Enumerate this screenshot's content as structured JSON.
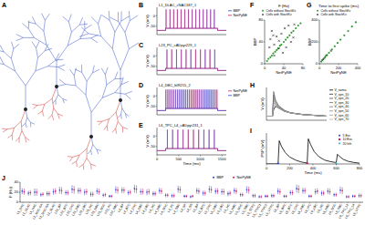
{
  "chart_data": [
    {
      "type": "morphology",
      "panel": "A"
    },
    {
      "type": "trace",
      "panel": "B",
      "title": "L1_DLAC_cNAC187_1",
      "y_label": "V (mV)",
      "xlim": [
        0,
        1600
      ],
      "ylim": [
        -90,
        40
      ],
      "yticks": [
        -50,
        0
      ],
      "stim": [
        200,
        1400
      ],
      "v_rest": -70,
      "v_stim": -60,
      "v_peak": 30,
      "legend": "upper right",
      "series": [
        {
          "name": "BBP",
          "color": "#2b3fd6",
          "spike_times": [
            210,
            300,
            385,
            470,
            555,
            640,
            725,
            810,
            895,
            980,
            1065,
            1150,
            1235,
            1320
          ]
        },
        {
          "name": "NetPyNE",
          "color": "#d1185a",
          "spike_times": [
            212,
            302,
            388,
            473,
            558,
            644,
            729,
            814,
            899,
            985,
            1070,
            1155,
            1240,
            1326
          ]
        }
      ]
    },
    {
      "type": "trace",
      "panel": "C",
      "title": "L23_PC_cADpyr229_1",
      "y_label": "V (mV)",
      "xlim": [
        0,
        1600
      ],
      "ylim": [
        -90,
        40
      ],
      "yticks": [
        -50,
        0
      ],
      "stim": [
        200,
        1400
      ],
      "v_rest": -70,
      "v_stim": -60,
      "v_peak": 30,
      "series": [
        {
          "name": "BBP",
          "color": "#2b3fd6",
          "spike_times": [
            230,
            340,
            450,
            560,
            670,
            780,
            890,
            1000,
            1110,
            1220,
            1330
          ]
        },
        {
          "name": "NetPyNE",
          "color": "#d1185a",
          "spike_times": [
            232,
            343,
            453,
            564,
            674,
            785,
            895,
            1006,
            1116,
            1227,
            1337
          ]
        }
      ]
    },
    {
      "type": "trace",
      "panel": "D",
      "title": "L4_DBC_bIR215_2",
      "y_label": "V (mV)",
      "xlim": [
        0,
        1600
      ],
      "ylim": [
        -90,
        40
      ],
      "yticks": [
        -50,
        0
      ],
      "stim": [
        200,
        1400
      ],
      "v_rest": -70,
      "v_stim": -60,
      "v_peak": 30,
      "legend": "upper right",
      "series": [
        {
          "name": "NetPyNE",
          "color": "#d1185a",
          "spike_times": [
            207,
            253,
            298,
            344,
            389,
            435,
            480,
            526,
            571,
            617,
            662,
            708,
            753,
            799,
            844,
            890,
            935,
            981,
            1026,
            1072,
            1117,
            1163,
            1208,
            1254,
            1299,
            1345,
            1390
          ]
        },
        {
          "name": "BBP",
          "color": "#2b3fd6",
          "spike_times": [
            205,
            250,
            295,
            340,
            385,
            430,
            475,
            520,
            565,
            610,
            655,
            700,
            745,
            790,
            835,
            880,
            925,
            970,
            1015,
            1060,
            1105,
            1150,
            1195,
            1240,
            1285,
            1330,
            1375
          ]
        }
      ]
    },
    {
      "type": "trace",
      "panel": "E",
      "title": "L6_TPC_L4_cADpyr231_1",
      "y_label": "V (mV)",
      "x_label": "Time (ms)",
      "xlim": [
        0,
        1600
      ],
      "xticks": [
        0,
        500,
        1000,
        1500
      ],
      "ylim": [
        -90,
        40
      ],
      "yticks": [
        -50,
        0
      ],
      "stim": [
        200,
        1400
      ],
      "v_rest": -70,
      "v_stim": -60,
      "v_peak": 30,
      "series": [
        {
          "name": "BBP",
          "color": "#2b3fd6",
          "spike_times": [
            240,
            360,
            480,
            600,
            720,
            840,
            960,
            1080,
            1200,
            1320
          ]
        },
        {
          "name": "NetPyNE",
          "color": "#d1185a",
          "spike_times": [
            242,
            363,
            483,
            604,
            724,
            845,
            965,
            1086,
            1206,
            1327
          ]
        }
      ]
    },
    {
      "type": "scatter",
      "panel": "F",
      "title": "F (Hz)",
      "x_label": "NetPyNE",
      "y_label": "BBP",
      "xlim": [
        0,
        80
      ],
      "ylim": [
        0,
        80
      ],
      "xticks": [
        0,
        40,
        80
      ],
      "yticks": [
        0,
        40,
        80
      ],
      "legend": "upper left",
      "series": [
        {
          "name": "Cells without StochKv",
          "color": "#2e9e2e",
          "marker": "circle",
          "x": [
            5,
            8,
            12,
            15,
            18,
            22,
            25,
            28,
            32,
            35,
            40,
            44,
            48,
            52,
            56,
            60,
            65,
            70,
            75
          ],
          "values": [
            5,
            9,
            12,
            15,
            19,
            22,
            25,
            28,
            33,
            35,
            40,
            44,
            48,
            52,
            57,
            60,
            65,
            70,
            74
          ]
        },
        {
          "name": "Cells with StochKv",
          "color": "#000000",
          "marker": "cross",
          "x": [
            10,
            12,
            15,
            20,
            25,
            30,
            35,
            38,
            42,
            45,
            50,
            55,
            60,
            20,
            30,
            62,
            18
          ],
          "values": [
            30,
            45,
            60,
            35,
            50,
            42,
            55,
            20,
            65,
            30,
            70,
            40,
            48,
            15,
            28,
            72,
            52
          ]
        }
      ]
    },
    {
      "type": "scatter",
      "panel": "G",
      "title": "Time to first spike (ms)",
      "x_label": "NetPyNE",
      "y_label": "BBP",
      "xlim": [
        0,
        400
      ],
      "ylim": [
        0,
        400
      ],
      "xticks": [
        0,
        200,
        400
      ],
      "yticks": [
        0,
        200,
        400
      ],
      "legend": "upper left",
      "series": [
        {
          "name": "Cells without StochKv",
          "color": "#2e9e2e",
          "marker": "circle",
          "x": [
            20,
            40,
            60,
            80,
            100,
            130,
            160,
            190,
            220,
            260,
            300,
            340,
            380
          ],
          "values": [
            20,
            40,
            61,
            80,
            100,
            130,
            160,
            190,
            220,
            260,
            300,
            340,
            380
          ]
        },
        {
          "name": "Cells with StochKv",
          "color": "#000000",
          "marker": "cross",
          "x": [
            30,
            50,
            70,
            120
          ],
          "values": [
            32,
            50,
            75,
            118
          ]
        }
      ]
    },
    {
      "type": "line",
      "panel": "H",
      "y_label": "V (mV)",
      "xlim": [
        0,
        100
      ],
      "ylim": [
        -75,
        -35
      ],
      "tick_labels": false,
      "legend": "upper right",
      "x": [
        0,
        5,
        10,
        12,
        15,
        20,
        30,
        40,
        60,
        80,
        100
      ],
      "series": [
        {
          "name": "V_soma",
          "color": "#000000",
          "values": [
            -70,
            -70,
            -70,
            -62,
            -58,
            -60,
            -64,
            -66,
            -68,
            -69,
            -70
          ]
        },
        {
          "name": "V_spn_10",
          "color": "#333333",
          "values": [
            -70,
            -70,
            -70,
            -40,
            -50,
            -57,
            -63,
            -66,
            -68,
            -69,
            -70
          ]
        },
        {
          "name": "V_spn_20",
          "color": "#4d4d4d",
          "values": [
            -70,
            -70,
            -70,
            -44,
            -52,
            -58,
            -63,
            -66,
            -68,
            -69,
            -70
          ]
        },
        {
          "name": "V_spn_30",
          "color": "#666666",
          "values": [
            -70,
            -70,
            -70,
            -48,
            -54,
            -59,
            -64,
            -66,
            -68,
            -69,
            -70
          ]
        },
        {
          "name": "V_spn_40",
          "color": "#7a7a7a",
          "values": [
            -70,
            -70,
            -70,
            -51,
            -55,
            -59,
            -64,
            -66,
            -68,
            -69,
            -70
          ]
        },
        {
          "name": "V_spn_50",
          "color": "#8c8c8c",
          "values": [
            -70,
            -70,
            -70,
            -54,
            -56,
            -60,
            -64,
            -66,
            -68,
            -69,
            -70
          ]
        },
        {
          "name": "V_spn_60",
          "color": "#9e9e9e",
          "values": [
            -70,
            -70,
            -70,
            -56,
            -57,
            -60,
            -64,
            -66,
            -68,
            -69,
            -70
          ]
        },
        {
          "name": "V_spn_70",
          "color": "#b0b0b0",
          "values": [
            -70,
            -70,
            -70,
            -58,
            -58,
            -60,
            -64,
            -66,
            -68,
            -69,
            -70
          ]
        }
      ]
    },
    {
      "type": "line",
      "panel": "I",
      "y_label": "PSP (mV)",
      "x_label": "Time (ms)",
      "xlim": [
        0,
        800
      ],
      "xticks": [
        0,
        200,
        400,
        600,
        800
      ],
      "ylim": [
        0,
        8
      ],
      "tick_labels": "x",
      "legend": "upper right",
      "series": [
        {
          "color": "#000000",
          "x": [
            0,
            90,
            100,
            110,
            130,
            160,
            200,
            250,
            300,
            340,
            350,
            360,
            380,
            410,
            450,
            500,
            550,
            590,
            600,
            610,
            630,
            660,
            700,
            750,
            800
          ],
          "values": [
            0,
            0,
            0,
            6,
            4.5,
            3,
            1.8,
            1,
            0.5,
            0.3,
            0.3,
            6.5,
            5,
            3.2,
            1.9,
            1,
            0.6,
            0.4,
            0.4,
            2.5,
            1.9,
            1.2,
            0.7,
            0.4,
            0.2
          ]
        },
        {
          "type": "scatter",
          "name": "5 Exc",
          "color": "#2b3fd6",
          "marker": "circle",
          "x": [
            100
          ],
          "values": [
            0
          ]
        },
        {
          "type": "scatter",
          "name": "10 Exc",
          "color": "#d1185a",
          "marker": "square",
          "x": [
            350
          ],
          "values": [
            0
          ]
        },
        {
          "type": "scatter",
          "name": "20 Inh",
          "color": "#1ab0c0",
          "marker": "diamond",
          "x": [
            600
          ],
          "values": [
            0
          ]
        }
      ]
    },
    {
      "type": "errorbar",
      "panel": "J",
      "y_label": "F (Hz)",
      "ylim": [
        0,
        40
      ],
      "yticks": [
        0,
        20,
        40
      ],
      "legend": "upper right",
      "categories": [
        "L1_DAC",
        "L1_DLAC",
        "L1_HAC",
        "L1_NGC-DA",
        "L1_NGC-SA",
        "L1_SLAC",
        "L23_BP",
        "L23_BTC",
        "L23_ChC",
        "L23_DBC",
        "L23_LBC",
        "L23_MC",
        "L23_NBC",
        "L23_NGC",
        "L23_PC",
        "L23_SBC",
        "L4_BP",
        "L4_BTC",
        "L4_ChC",
        "L4_DBC",
        "L4_LBC",
        "L4_MC",
        "L4_NBC",
        "L4_NGC",
        "L4_PC",
        "L4_SBC",
        "L4_SP",
        "L4_SS",
        "L5_BP",
        "L5_BTC",
        "L5_ChC",
        "L5_DBC",
        "L5_LBC",
        "L5_MC",
        "L5_NBC",
        "L5_NGC",
        "L5_SBC",
        "L5_STPC",
        "L5_TTPC1",
        "L5_TTPC2",
        "L5_UTPC",
        "L6_BP",
        "L6_BPC",
        "L6_BTC",
        "L6_ChC",
        "L6_DBC",
        "L6_IPC",
        "L6_LBC",
        "L6_MC",
        "L6_NBC",
        "L6_NGC",
        "L6_SBC",
        "L6_TPC_L1",
        "L6_TPC_L4",
        "L6_UTPC"
      ],
      "series": [
        {
          "name": "BBP",
          "color": "#2b3fd6",
          "values": [
            22,
            18,
            20,
            15,
            17,
            21,
            24,
            19,
            26,
            23,
            20,
            16,
            22,
            14,
            12,
            25,
            24,
            19,
            27,
            21,
            20,
            17,
            23,
            14,
            13,
            26,
            12,
            11,
            23,
            18,
            26,
            22,
            21,
            17,
            23,
            15,
            25,
            13,
            11,
            12,
            13,
            22,
            12,
            19,
            27,
            23,
            12,
            21,
            18,
            22,
            15,
            24,
            11,
            12,
            13
          ],
          "errors": [
            6,
            5,
            7,
            4,
            5,
            6,
            7,
            5,
            8,
            6,
            6,
            5,
            6,
            4,
            3,
            7,
            6,
            5,
            8,
            6,
            6,
            5,
            6,
            4,
            4,
            7,
            3,
            3,
            6,
            5,
            7,
            6,
            6,
            5,
            6,
            4,
            7,
            4,
            3,
            3,
            4,
            6,
            3,
            5,
            8,
            6,
            3,
            6,
            5,
            6,
            4,
            7,
            3,
            3,
            4
          ]
        },
        {
          "name": "NetPyNE",
          "color": "#d1185a",
          "values": [
            21,
            19,
            20,
            16,
            17,
            22,
            23,
            19,
            25,
            23,
            21,
            16,
            21,
            15,
            12,
            24,
            24,
            20,
            26,
            21,
            21,
            17,
            22,
            14,
            13,
            25,
            12,
            12,
            22,
            18,
            25,
            22,
            21,
            18,
            22,
            15,
            24,
            13,
            11,
            12,
            13,
            21,
            12,
            19,
            26,
            23,
            12,
            22,
            18,
            21,
            15,
            23,
            11,
            12,
            13
          ],
          "errors": [
            6,
            5,
            7,
            4,
            5,
            6,
            7,
            5,
            8,
            6,
            6,
            5,
            6,
            4,
            3,
            7,
            6,
            5,
            8,
            6,
            6,
            5,
            6,
            4,
            4,
            7,
            3,
            3,
            6,
            5,
            7,
            6,
            6,
            5,
            6,
            4,
            7,
            4,
            3,
            3,
            4,
            6,
            3,
            5,
            8,
            6,
            3,
            6,
            5,
            6,
            4,
            7,
            3,
            3,
            4
          ]
        }
      ]
    }
  ]
}
